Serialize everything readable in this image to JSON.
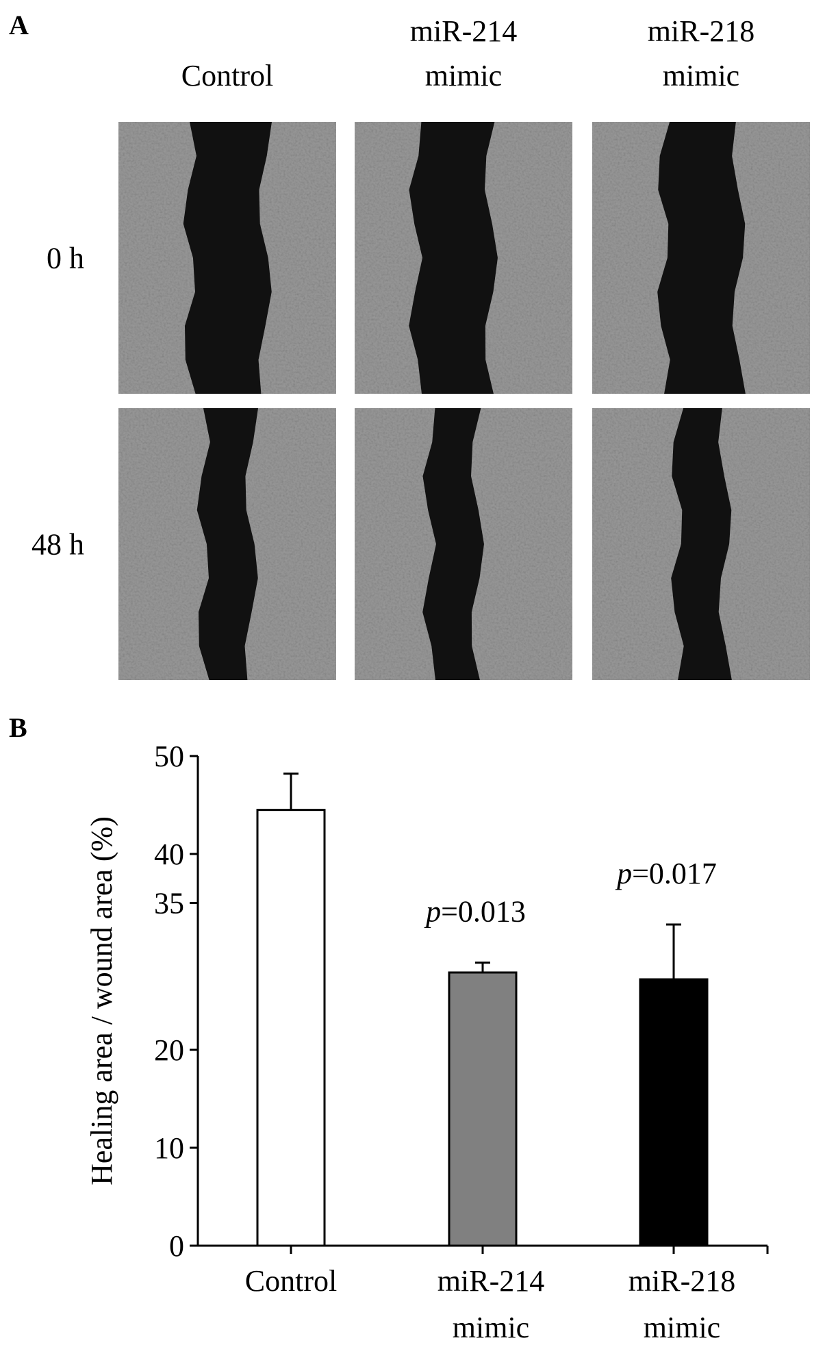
{
  "panel_labels": [
    "A",
    "B"
  ],
  "panel_a": {
    "columns": [
      [
        "Control"
      ],
      [
        "miR-214",
        "mimic"
      ],
      [
        "miR-218",
        "mimic"
      ]
    ],
    "rows": [
      "0 h",
      "48 h"
    ]
  },
  "chart_data": {
    "type": "bar",
    "ylabel": "Healing area / wound area (%)",
    "categories": [
      [
        "Control"
      ],
      [
        "miR-214",
        "mimic"
      ],
      [
        "miR-218",
        "mimic"
      ]
    ],
    "values": [
      44.5,
      27.9,
      27.2
    ],
    "errors": [
      3.7,
      1.0,
      5.6
    ],
    "colors": [
      "#ffffff",
      "#808080",
      "#000000"
    ],
    "ylim": [
      0,
      50
    ],
    "yticks": [
      0,
      10,
      20,
      35,
      40,
      50
    ],
    "annotations": [
      null,
      {
        "italic": "p",
        "rest": "=0.013"
      },
      {
        "italic": "p",
        "rest": "=0.017"
      }
    ]
  }
}
